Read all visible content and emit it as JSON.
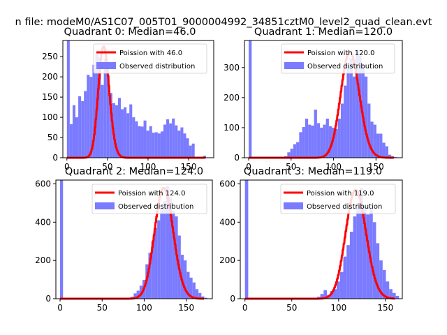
{
  "figure_title": "n file: modeM0/AS1C07_005T01_9000004992_34851cztM0_level2_quad_clean.evt",
  "colors": {
    "hist": "#7b7bff",
    "poisson": "#ff0000",
    "axis": "#000000",
    "text": "#000000"
  },
  "chart_data": [
    {
      "type": "bar",
      "title": "Quadrant 0: Median=46.0",
      "median": 46.0,
      "legend": {
        "position": "top-right",
        "poisson_label": "Poission with 46.0",
        "hist_label": "Observed distribution"
      },
      "xlim": [
        -5,
        181
      ],
      "ylim": [
        0,
        290
      ],
      "xticks": [
        0,
        50,
        100,
        150
      ],
      "yticks": [
        0,
        50,
        100,
        150,
        200,
        250
      ],
      "hist": {
        "bin_start": 0,
        "bin_width": 3.5,
        "counts": [
          290,
          83,
          130,
          100,
          152,
          140,
          165,
          205,
          200,
          230,
          258,
          248,
          180,
          245,
          205,
          160,
          135,
          130,
          148,
          120,
          125,
          110,
          132,
          100,
          90,
          78,
          77,
          92,
          67,
          78,
          62,
          63,
          60,
          65,
          82,
          95,
          85,
          97,
          80,
          67,
          75,
          60,
          48,
          30,
          35,
          0,
          0,
          0,
          5
        ]
      }
    },
    {
      "type": "bar",
      "title": "Quadrant 1: Median=120.0",
      "median": 120.0,
      "legend": {
        "position": "top-right",
        "poisson_label": "Poission with 120.0",
        "hist_label": "Observed distribution"
      },
      "xlim": [
        -5,
        181
      ],
      "ylim": [
        0,
        390
      ],
      "xticks": [
        0,
        50,
        100,
        150
      ],
      "yticks": [
        0,
        100,
        200,
        300
      ],
      "hist": {
        "bin_start": 0,
        "bin_width": 3.5,
        "counts": [
          390,
          0,
          0,
          0,
          0,
          0,
          0,
          0,
          0,
          0,
          0,
          2,
          5,
          18,
          30,
          45,
          52,
          85,
          102,
          130,
          110,
          107,
          160,
          115,
          100,
          110,
          130,
          105,
          100,
          95,
          130,
          180,
          240,
          310,
          330,
          270,
          360,
          340,
          310,
          270,
          180,
          120,
          110,
          80,
          80,
          50,
          38,
          10,
          5,
          2
        ]
      }
    },
    {
      "type": "bar",
      "title": "Quadrant 2: Median=124.0",
      "median": 124.0,
      "legend": {
        "position": "top-right",
        "poisson_label": "Poission with 124.0",
        "hist_label": "Observed distribution"
      },
      "xlim": [
        -5,
        181
      ],
      "ylim": [
        0,
        620
      ],
      "xticks": [
        0,
        50,
        100,
        150
      ],
      "yticks": [
        0,
        200,
        400,
        600
      ],
      "hist": {
        "bin_start": 0,
        "bin_width": 3.5,
        "counts": [
          620,
          0,
          0,
          0,
          0,
          0,
          0,
          0,
          0,
          0,
          0,
          0,
          0,
          0,
          0,
          0,
          0,
          0,
          0,
          0,
          0,
          0,
          3,
          5,
          10,
          28,
          42,
          68,
          98,
          180,
          240,
          300,
          370,
          410,
          470,
          510,
          590,
          530,
          460,
          430,
          330,
          230,
          200,
          140,
          110,
          85,
          50,
          30,
          12,
          5
        ]
      }
    },
    {
      "type": "bar",
      "title": "Quadrant 3: Median=119.0",
      "median": 119.0,
      "legend": {
        "position": "top-right",
        "poisson_label": "Poission with 119.0",
        "hist_label": "Observed distribution"
      },
      "xlim": [
        -5,
        168
      ],
      "ylim": [
        0,
        620
      ],
      "xticks": [
        0,
        50,
        100,
        150
      ],
      "yticks": [
        0,
        200,
        400,
        600
      ],
      "hist": {
        "bin_start": 0,
        "bin_width": 3.5,
        "counts": [
          620,
          0,
          0,
          0,
          0,
          0,
          0,
          0,
          0,
          0,
          0,
          0,
          0,
          0,
          0,
          0,
          0,
          0,
          0,
          0,
          0,
          0,
          10,
          25,
          45,
          20,
          40,
          50,
          90,
          140,
          220,
          280,
          350,
          430,
          500,
          580,
          480,
          440,
          480,
          400,
          290,
          200,
          150,
          90,
          50,
          30,
          15
        ]
      }
    }
  ]
}
